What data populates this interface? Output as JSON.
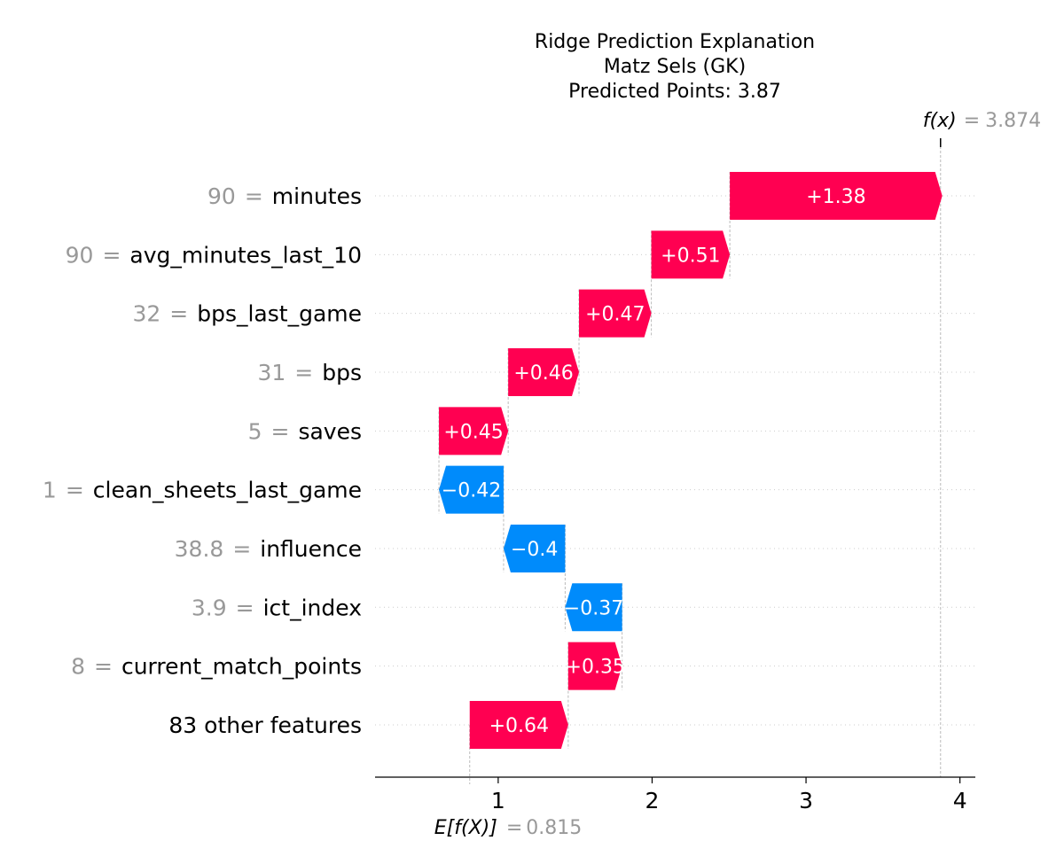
{
  "chart_data": {
    "type": "waterfall",
    "title_lines": [
      "Ridge Prediction Explanation",
      "Matz Sels (GK)",
      "Predicted Points: 3.87"
    ],
    "base_value": 0.815,
    "base_value_text": "0.815",
    "base_label_text": "E[f(X)]",
    "final_value": 3.874,
    "final_value_text": "3.874",
    "final_label_text": "f(x)",
    "equals": "=",
    "xlim": [
      0.2,
      4.1
    ],
    "xticks": [
      1,
      2,
      3,
      4
    ],
    "xtick_labels": [
      "1",
      "2",
      "3",
      "4"
    ],
    "features": [
      {
        "value": "90",
        "name": "minutes",
        "label": "",
        "contribution": 1.38,
        "contribution_text": "+1.38"
      },
      {
        "value": "90",
        "name": "avg_minutes_last_10",
        "label": "",
        "contribution": 0.51,
        "contribution_text": "+0.51"
      },
      {
        "value": "32",
        "name": "bps_last_game",
        "label": "",
        "contribution": 0.47,
        "contribution_text": "+0.47"
      },
      {
        "value": "31",
        "name": "bps",
        "label": "",
        "contribution": 0.46,
        "contribution_text": "+0.46"
      },
      {
        "value": "5",
        "name": "saves",
        "label": "",
        "contribution": 0.45,
        "contribution_text": "+0.45"
      },
      {
        "value": "1",
        "name": "clean_sheets_last_game",
        "label": "",
        "contribution": -0.42,
        "contribution_text": "−0.42"
      },
      {
        "value": "38.8",
        "name": "influence",
        "label": "",
        "contribution": -0.4,
        "contribution_text": "−0.4"
      },
      {
        "value": "3.9",
        "name": "ict_index",
        "label": "",
        "contribution": -0.37,
        "contribution_text": "−0.37"
      },
      {
        "value": "8",
        "name": "current_match_points",
        "label": "",
        "contribution": 0.35,
        "contribution_text": "+0.35"
      },
      {
        "value": "",
        "name": "",
        "label": "83 other features",
        "contribution": 0.64,
        "contribution_text": "+0.64"
      }
    ],
    "colors": {
      "positive": "#ff0051",
      "negative": "#008bfb",
      "value_gray": "#999999",
      "text": "#000000"
    }
  }
}
